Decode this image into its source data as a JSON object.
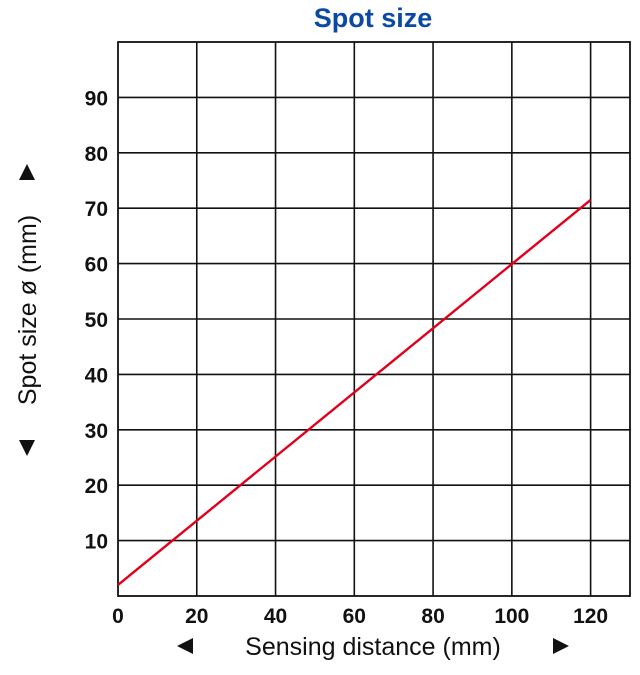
{
  "chart_data": {
    "type": "line",
    "title": "Spot size",
    "xlabel": "Sensing distance (mm)",
    "ylabel": "Spot size ø (mm)",
    "xlim": [
      0,
      130
    ],
    "ylim": [
      0,
      100
    ],
    "x_ticks": [
      0,
      20,
      40,
      60,
      80,
      100,
      120
    ],
    "y_ticks": [
      10,
      20,
      30,
      40,
      50,
      60,
      70,
      80,
      90
    ],
    "x_tick_labels": [
      "0",
      "20",
      "40",
      "60",
      "80",
      "100",
      "120"
    ],
    "y_tick_labels": [
      "10",
      "20",
      "30",
      "40",
      "50",
      "60",
      "70",
      "80",
      "90"
    ],
    "grid": true,
    "series": [
      {
        "x": [
          0,
          120
        ],
        "y": [
          2,
          71.5
        ]
      }
    ]
  },
  "colors": {
    "title": "#0b4aa2",
    "line": "#e1001c",
    "grid": "#111111",
    "text": "#111111"
  }
}
